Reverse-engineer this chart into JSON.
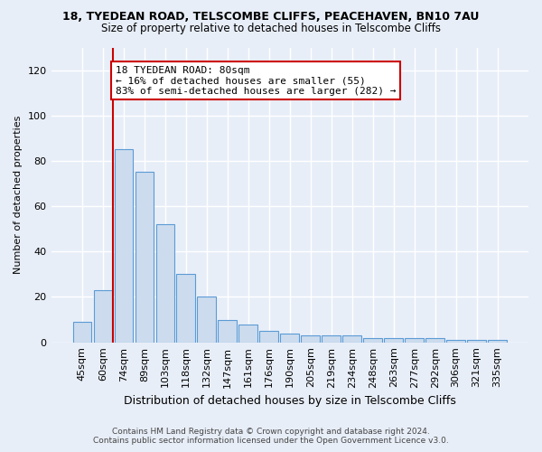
{
  "title": "18, TYEDEAN ROAD, TELSCOMBE CLIFFS, PEACEHAVEN, BN10 7AU",
  "subtitle": "Size of property relative to detached houses in Telscombe Cliffs",
  "xlabel": "Distribution of detached houses by size in Telscombe Cliffs",
  "ylabel": "Number of detached properties",
  "categories": [
    "45sqm",
    "60sqm",
    "74sqm",
    "89sqm",
    "103sqm",
    "118sqm",
    "132sqm",
    "147sqm",
    "161sqm",
    "176sqm",
    "190sqm",
    "205sqm",
    "219sqm",
    "234sqm",
    "248sqm",
    "263sqm",
    "277sqm",
    "292sqm",
    "306sqm",
    "321sqm",
    "335sqm"
  ],
  "values": [
    9,
    23,
    85,
    75,
    52,
    30,
    20,
    10,
    8,
    5,
    4,
    3,
    3,
    3,
    2,
    2,
    2,
    2,
    1,
    1,
    1
  ],
  "bar_color": "#ccdcee",
  "bar_edge_color": "#5b9bd5",
  "annotation_text": "18 TYEDEAN ROAD: 80sqm\n← 16% of detached houses are smaller (55)\n83% of semi-detached houses are larger (282) →",
  "annotation_box_color": "white",
  "annotation_box_edge_color": "#cc0000",
  "vline_color": "#cc0000",
  "vline_x_index": 1.5,
  "ylim": [
    0,
    130
  ],
  "yticks": [
    0,
    20,
    40,
    60,
    80,
    100,
    120
  ],
  "footer_line1": "Contains HM Land Registry data © Crown copyright and database right 2024.",
  "footer_line2": "Contains public sector information licensed under the Open Government Licence v3.0.",
  "background_color": "#e8eef8",
  "grid_color": "white",
  "title_fontsize": 9,
  "subtitle_fontsize": 8.5
}
